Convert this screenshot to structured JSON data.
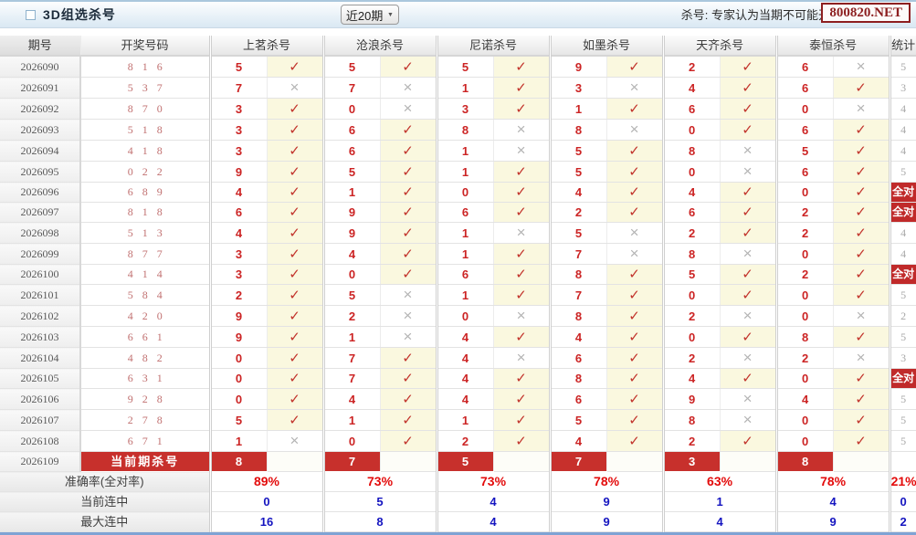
{
  "titlebar": {
    "title": "3D组选杀号",
    "range_select": "近20期",
    "note": "杀号: 专家认为当期不可能开出的号码",
    "watermark": "800820.NET"
  },
  "icons": {
    "check": "✓",
    "cross": "×",
    "chevron": "▼"
  },
  "colors": {
    "accent_red": "#c7302c",
    "check_red": "#c2342c",
    "cross_gray": "#b3b3b3",
    "value_blue": "#1515c0",
    "hit_cell_bg": "#faf8df"
  },
  "table": {
    "headers": [
      "期号",
      "开奖号码",
      "上茗杀号",
      "沧浪杀号",
      "尼诺杀号",
      "如墨杀号",
      "天齐杀号",
      "泰恒杀号",
      "统计"
    ],
    "all_correct_label": "全对",
    "rows": [
      {
        "period": "2026090",
        "draw": "816",
        "kills": [
          [
            "5",
            1
          ],
          [
            "5",
            1
          ],
          [
            "5",
            1
          ],
          [
            "9",
            1
          ],
          [
            "2",
            1
          ],
          [
            "6",
            0
          ]
        ],
        "stat": "5"
      },
      {
        "period": "2026091",
        "draw": "537",
        "kills": [
          [
            "7",
            0
          ],
          [
            "7",
            0
          ],
          [
            "1",
            1
          ],
          [
            "3",
            0
          ],
          [
            "4",
            1
          ],
          [
            "6",
            1
          ]
        ],
        "stat": "3"
      },
      {
        "period": "2026092",
        "draw": "870",
        "kills": [
          [
            "3",
            1
          ],
          [
            "0",
            0
          ],
          [
            "3",
            1
          ],
          [
            "1",
            1
          ],
          [
            "6",
            1
          ],
          [
            "0",
            0
          ]
        ],
        "stat": "4"
      },
      {
        "period": "2026093",
        "draw": "518",
        "kills": [
          [
            "3",
            1
          ],
          [
            "6",
            1
          ],
          [
            "8",
            0
          ],
          [
            "8",
            0
          ],
          [
            "0",
            1
          ],
          [
            "6",
            1
          ]
        ],
        "stat": "4"
      },
      {
        "period": "2026094",
        "draw": "418",
        "kills": [
          [
            "3",
            1
          ],
          [
            "6",
            1
          ],
          [
            "1",
            0
          ],
          [
            "5",
            1
          ],
          [
            "8",
            0
          ],
          [
            "5",
            1
          ]
        ],
        "stat": "4"
      },
      {
        "period": "2026095",
        "draw": "022",
        "kills": [
          [
            "9",
            1
          ],
          [
            "5",
            1
          ],
          [
            "1",
            1
          ],
          [
            "5",
            1
          ],
          [
            "0",
            0
          ],
          [
            "6",
            1
          ]
        ],
        "stat": "5"
      },
      {
        "period": "2026096",
        "draw": "689",
        "kills": [
          [
            "4",
            1
          ],
          [
            "1",
            1
          ],
          [
            "0",
            1
          ],
          [
            "4",
            1
          ],
          [
            "4",
            1
          ],
          [
            "0",
            1
          ]
        ],
        "stat": "全对"
      },
      {
        "period": "2026097",
        "draw": "818",
        "kills": [
          [
            "6",
            1
          ],
          [
            "9",
            1
          ],
          [
            "6",
            1
          ],
          [
            "2",
            1
          ],
          [
            "6",
            1
          ],
          [
            "2",
            1
          ]
        ],
        "stat": "全对"
      },
      {
        "period": "2026098",
        "draw": "513",
        "kills": [
          [
            "4",
            1
          ],
          [
            "9",
            1
          ],
          [
            "1",
            0
          ],
          [
            "5",
            0
          ],
          [
            "2",
            1
          ],
          [
            "2",
            1
          ]
        ],
        "stat": "4"
      },
      {
        "period": "2026099",
        "draw": "877",
        "kills": [
          [
            "3",
            1
          ],
          [
            "4",
            1
          ],
          [
            "1",
            1
          ],
          [
            "7",
            0
          ],
          [
            "8",
            0
          ],
          [
            "0",
            1
          ]
        ],
        "stat": "4"
      },
      {
        "period": "2026100",
        "draw": "414",
        "kills": [
          [
            "3",
            1
          ],
          [
            "0",
            1
          ],
          [
            "6",
            1
          ],
          [
            "8",
            1
          ],
          [
            "5",
            1
          ],
          [
            "2",
            1
          ]
        ],
        "stat": "全对"
      },
      {
        "period": "2026101",
        "draw": "584",
        "kills": [
          [
            "2",
            1
          ],
          [
            "5",
            0
          ],
          [
            "1",
            1
          ],
          [
            "7",
            1
          ],
          [
            "0",
            1
          ],
          [
            "0",
            1
          ]
        ],
        "stat": "5"
      },
      {
        "period": "2026102",
        "draw": "420",
        "kills": [
          [
            "9",
            1
          ],
          [
            "2",
            0
          ],
          [
            "0",
            0
          ],
          [
            "8",
            1
          ],
          [
            "2",
            0
          ],
          [
            "0",
            0
          ]
        ],
        "stat": "2"
      },
      {
        "period": "2026103",
        "draw": "661",
        "kills": [
          [
            "9",
            1
          ],
          [
            "1",
            0
          ],
          [
            "4",
            1
          ],
          [
            "4",
            1
          ],
          [
            "0",
            1
          ],
          [
            "8",
            1
          ]
        ],
        "stat": "5"
      },
      {
        "period": "2026104",
        "draw": "482",
        "kills": [
          [
            "0",
            1
          ],
          [
            "7",
            1
          ],
          [
            "4",
            0
          ],
          [
            "6",
            1
          ],
          [
            "2",
            0
          ],
          [
            "2",
            0
          ]
        ],
        "stat": "3"
      },
      {
        "period": "2026105",
        "draw": "631",
        "kills": [
          [
            "0",
            1
          ],
          [
            "7",
            1
          ],
          [
            "4",
            1
          ],
          [
            "8",
            1
          ],
          [
            "4",
            1
          ],
          [
            "0",
            1
          ]
        ],
        "stat": "全对"
      },
      {
        "period": "2026106",
        "draw": "928",
        "kills": [
          [
            "0",
            1
          ],
          [
            "4",
            1
          ],
          [
            "4",
            1
          ],
          [
            "6",
            1
          ],
          [
            "9",
            0
          ],
          [
            "4",
            1
          ]
        ],
        "stat": "5"
      },
      {
        "period": "2026107",
        "draw": "278",
        "kills": [
          [
            "5",
            1
          ],
          [
            "1",
            1
          ],
          [
            "1",
            1
          ],
          [
            "5",
            1
          ],
          [
            "8",
            0
          ],
          [
            "0",
            1
          ]
        ],
        "stat": "5"
      },
      {
        "period": "2026108",
        "draw": "671",
        "kills": [
          [
            "1",
            0
          ],
          [
            "0",
            1
          ],
          [
            "2",
            1
          ],
          [
            "4",
            1
          ],
          [
            "2",
            1
          ],
          [
            "0",
            1
          ]
        ],
        "stat": "5"
      }
    ],
    "current_row": {
      "period": "2026109",
      "label": "当前期杀号",
      "kills": [
        "8",
        "7",
        "5",
        "7",
        "3",
        "8"
      ],
      "stat": ""
    },
    "footer_rows": [
      {
        "label": "准确率(全对率)",
        "values": [
          "89%",
          "73%",
          "73%",
          "78%",
          "63%",
          "78%"
        ],
        "stat": "21%",
        "style": "red"
      },
      {
        "label": "当前连中",
        "values": [
          "0",
          "5",
          "4",
          "9",
          "1",
          "4"
        ],
        "stat": "0",
        "style": "blue"
      },
      {
        "label": "最大连中",
        "values": [
          "16",
          "8",
          "4",
          "9",
          "4",
          "9"
        ],
        "stat": "2",
        "style": "blue"
      }
    ]
  }
}
